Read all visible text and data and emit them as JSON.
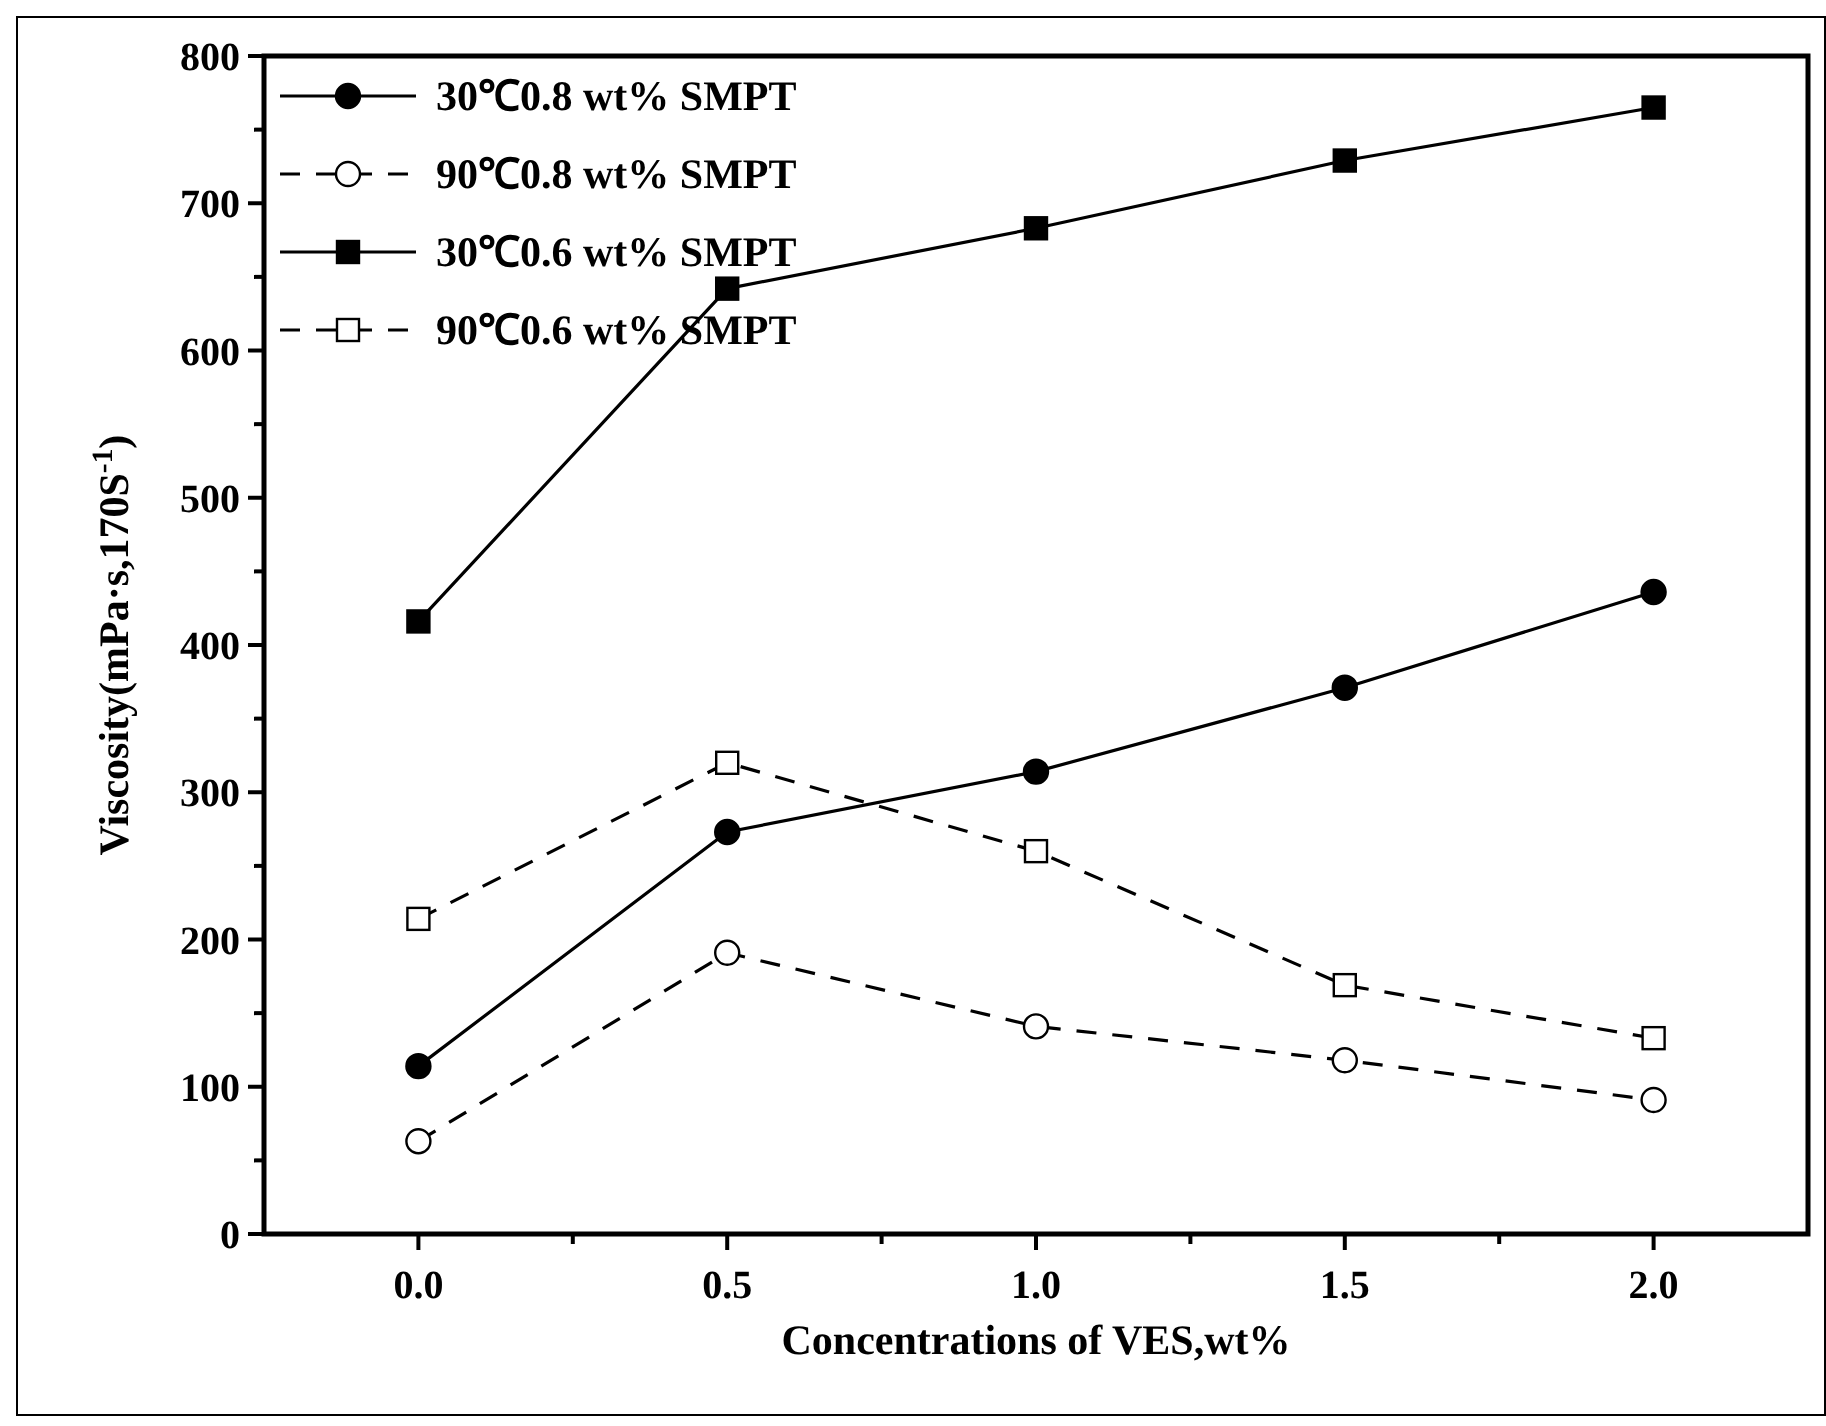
{
  "chart_data": {
    "type": "line",
    "xlabel": "Concentrations of VES,wt%",
    "ylabel": "Viscosity(mPa·s,170S$^{-1}$)",
    "x": [
      0,
      0.5,
      1,
      1.5,
      2
    ],
    "xlim": [
      -0.25,
      2.25
    ],
    "xticks": [
      {
        "value": 0,
        "label": "0.0"
      },
      {
        "value": 0.25,
        "label": null
      },
      {
        "value": 0.5,
        "label": "0.5"
      },
      {
        "value": 0.75,
        "label": null
      },
      {
        "value": 1,
        "label": "1.0"
      },
      {
        "value": 1.25,
        "label": null
      },
      {
        "value": 1.5,
        "label": "1.5"
      },
      {
        "value": 1.75,
        "label": null
      },
      {
        "value": 2,
        "label": "2.0"
      }
    ],
    "ylim": [
      0,
      800
    ],
    "yticks": [
      0,
      {
        "value": 50,
        "label": null
      },
      100,
      {
        "value": 150,
        "label": null
      },
      200,
      {
        "value": 250,
        "label": null
      },
      300,
      {
        "value": 350,
        "label": null
      },
      400,
      {
        "value": 450,
        "label": null
      },
      500,
      {
        "value": 550,
        "label": null
      },
      600,
      {
        "value": 650,
        "label": null
      },
      700,
      {
        "value": 750,
        "label": null
      },
      800
    ],
    "grid": false,
    "legend": "top left",
    "series": [
      {
        "name": "30℃0.8 wt% SMPT",
        "color": "#000000",
        "marker": "circle",
        "line_style": "solid",
        "values": [
          114,
          273,
          314,
          371,
          436
        ]
      },
      {
        "name": "90℃0.8 wt% SMPT",
        "color": "#000000",
        "marker": "circle",
        "line_style": "dashed",
        "values": [
          63,
          191,
          141,
          118,
          91
        ]
      },
      {
        "name": "30℃0.6 wt% SMPT",
        "color": "#000000",
        "marker": "square",
        "line_style": "solid",
        "values": [
          416,
          642,
          683,
          729,
          765
        ]
      },
      {
        "name": "90℃0.6 wt% SMPT",
        "color": "#000000",
        "marker": "square",
        "line_style": "dashed",
        "values": [
          214,
          320,
          260,
          169,
          133
        ]
      }
    ]
  }
}
